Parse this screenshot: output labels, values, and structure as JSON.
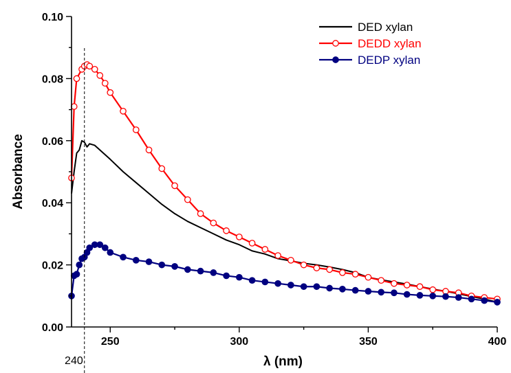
{
  "chart_data": {
    "type": "line",
    "title": "",
    "xlabel": "λ (nm)",
    "ylabel": "Absorbance",
    "xlim": [
      235,
      400
    ],
    "ylim": [
      0.0,
      0.1
    ],
    "x_ticks": [
      250,
      300,
      350,
      400
    ],
    "x_tick_labels": [
      "250",
      "300",
      "350",
      "400"
    ],
    "y_ticks": [
      0.0,
      0.02,
      0.04,
      0.06,
      0.08,
      0.1
    ],
    "y_tick_labels": [
      "0.00",
      "0.02",
      "0.04",
      "0.06",
      "0.08",
      "0.10"
    ],
    "grid": false,
    "legend_position": "top-right",
    "annotation": {
      "type": "vertical-dashed-line",
      "x": 240,
      "label": "240"
    },
    "series": [
      {
        "name": "DED xylan",
        "color": "#000000",
        "marker": "none",
        "x": [
          235,
          236,
          237,
          238,
          239,
          240,
          241,
          242,
          244,
          246,
          248,
          250,
          255,
          260,
          265,
          270,
          275,
          280,
          285,
          290,
          295,
          300,
          305,
          310,
          315,
          320,
          325,
          330,
          335,
          340,
          345,
          350,
          355,
          360,
          365,
          370,
          375,
          380,
          385,
          390,
          395,
          400
        ],
        "values": [
          0.043,
          0.05,
          0.056,
          0.057,
          0.06,
          0.0595,
          0.058,
          0.059,
          0.0585,
          0.057,
          0.0555,
          0.054,
          0.05,
          0.0465,
          0.043,
          0.0395,
          0.0365,
          0.034,
          0.032,
          0.03,
          0.028,
          0.0265,
          0.0245,
          0.0235,
          0.022,
          0.0213,
          0.0205,
          0.02,
          0.0193,
          0.0185,
          0.0175,
          0.016,
          0.0152,
          0.0145,
          0.0138,
          0.013,
          0.0122,
          0.0115,
          0.0107,
          0.0098,
          0.009,
          0.008
        ]
      },
      {
        "name": "DEDD xylan",
        "color": "#ff0000",
        "marker": "open-circle",
        "x": [
          235,
          236,
          237,
          239,
          240,
          241,
          242,
          244,
          246,
          248,
          250,
          255,
          260,
          265,
          270,
          275,
          280,
          285,
          290,
          295,
          300,
          305,
          310,
          315,
          320,
          325,
          330,
          335,
          340,
          345,
          350,
          355,
          360,
          365,
          370,
          375,
          380,
          385,
          390,
          395,
          400
        ],
        "values": [
          0.048,
          0.071,
          0.08,
          0.083,
          0.084,
          0.0845,
          0.084,
          0.083,
          0.081,
          0.0785,
          0.0755,
          0.0695,
          0.0635,
          0.057,
          0.051,
          0.0455,
          0.041,
          0.0365,
          0.0335,
          0.031,
          0.029,
          0.027,
          0.025,
          0.023,
          0.0215,
          0.02,
          0.019,
          0.0185,
          0.0175,
          0.017,
          0.016,
          0.015,
          0.014,
          0.0135,
          0.013,
          0.012,
          0.0115,
          0.011,
          0.01,
          0.0095,
          0.009
        ]
      },
      {
        "name": "DEDP xylan",
        "color": "#000080",
        "marker": "filled-circle",
        "x": [
          235,
          236,
          237,
          238,
          239,
          240,
          241,
          242,
          244,
          246,
          248,
          250,
          255,
          260,
          265,
          270,
          275,
          280,
          285,
          290,
          295,
          300,
          305,
          310,
          315,
          320,
          325,
          330,
          335,
          340,
          345,
          350,
          355,
          360,
          365,
          370,
          375,
          380,
          385,
          390,
          395,
          400
        ],
        "values": [
          0.01,
          0.0165,
          0.017,
          0.02,
          0.022,
          0.0225,
          0.024,
          0.0255,
          0.0265,
          0.0265,
          0.0255,
          0.024,
          0.0225,
          0.0215,
          0.021,
          0.02,
          0.0195,
          0.0185,
          0.018,
          0.0175,
          0.0165,
          0.016,
          0.015,
          0.0145,
          0.014,
          0.0135,
          0.013,
          0.013,
          0.0125,
          0.0122,
          0.0118,
          0.0115,
          0.0112,
          0.011,
          0.0105,
          0.0102,
          0.01,
          0.0098,
          0.0095,
          0.009,
          0.0085,
          0.008
        ]
      }
    ]
  }
}
